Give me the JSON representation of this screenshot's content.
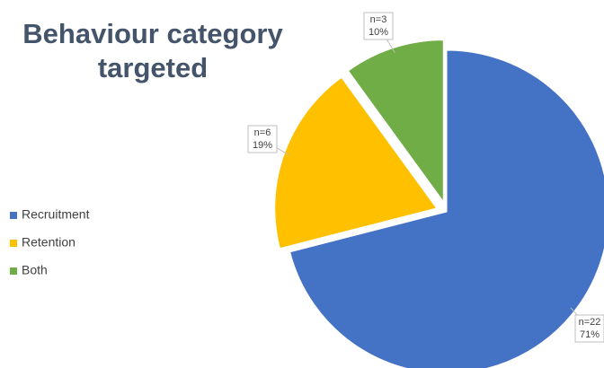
{
  "chart_data": {
    "type": "pie",
    "title": "Behaviour category targeted",
    "categories": [
      "Recruitment",
      "Retention",
      "Both"
    ],
    "values": [
      71,
      19,
      10
    ],
    "value_labels": [
      "71%",
      "19%",
      "10%"
    ],
    "counts": [
      22,
      6,
      3
    ],
    "count_labels": [
      "n=22",
      "n=6",
      "n=3"
    ],
    "colors": [
      "#4472c4",
      "#ffc000",
      "#70ad47"
    ],
    "legend": "left"
  }
}
